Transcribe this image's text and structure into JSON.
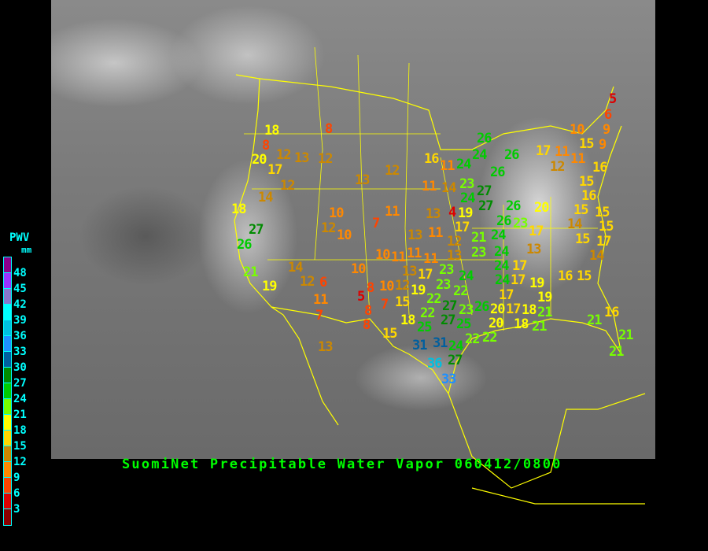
{
  "title": "SuomiNet Precipitable Water Vapor 060412/0800",
  "legend": {
    "title": "PWV",
    "unit": "mm",
    "labels": [
      "48",
      "45",
      "42",
      "39",
      "36",
      "33",
      "30",
      "27",
      "24",
      "21",
      "18",
      "15",
      "12",
      "9",
      "6",
      "3"
    ],
    "colors": [
      "#8b008b",
      "#9933ff",
      "#8877cc",
      "#00ffff",
      "#00c0e0",
      "#1e90ff",
      "#005f9f",
      "#008b00",
      "#00cc00",
      "#77ff00",
      "#ffff00",
      "#ffd700",
      "#cc8800",
      "#ff8800",
      "#ff4400",
      "#dd0000",
      "#8b0000"
    ]
  },
  "map_colors": {
    "border": "#ffff00",
    "background": "#000000"
  },
  "stations": [
    5,
    6,
    9,
    10,
    9,
    15,
    11,
    17,
    12,
    11,
    16,
    15,
    16,
    15,
    15,
    14,
    15,
    17,
    15,
    14,
    20,
    17,
    13,
    24,
    17,
    19,
    16,
    15,
    17,
    20,
    18,
    21,
    21,
    16,
    21,
    21,
    26,
    24,
    26,
    26,
    24,
    16,
    11,
    23,
    27,
    11,
    14,
    24,
    27,
    19,
    26,
    26,
    23,
    13,
    4,
    21,
    17,
    24,
    23,
    24,
    12,
    13,
    11,
    11,
    8,
    18,
    8,
    20,
    12,
    13,
    12,
    17,
    12,
    13,
    12,
    14,
    18,
    27,
    26,
    10,
    12,
    10,
    7,
    11,
    13,
    21,
    19,
    14,
    12,
    6,
    10,
    11,
    7,
    8,
    5,
    10,
    12,
    7,
    15,
    8,
    8,
    18,
    15,
    13,
    13,
    10,
    11,
    11,
    23,
    17,
    23,
    24,
    22,
    19,
    22,
    24,
    17,
    27,
    23,
    22,
    25,
    27,
    25,
    26,
    20,
    22,
    22,
    31,
    31,
    24,
    36,
    27,
    33,
    17,
    19,
    18,
    21,
    21
  ]
}
